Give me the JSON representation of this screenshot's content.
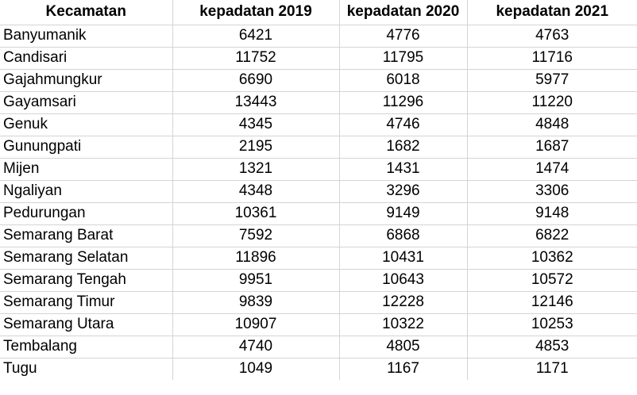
{
  "table": {
    "headers": [
      "Kecamatan",
      "kepadatan 2019",
      "kepadatan 2020",
      "kepadatan 2021"
    ],
    "rows": [
      [
        "Banyumanik",
        "6421",
        "4776",
        "4763"
      ],
      [
        "Candisari",
        "11752",
        "11795",
        "11716"
      ],
      [
        "Gajahmungkur",
        "6690",
        "6018",
        "5977"
      ],
      [
        "Gayamsari",
        "13443",
        "11296",
        "11220"
      ],
      [
        "Genuk",
        "4345",
        "4746",
        "4848"
      ],
      [
        "Gunungpati",
        "2195",
        "1682",
        "1687"
      ],
      [
        "Mijen",
        "1321",
        "1431",
        "1474"
      ],
      [
        "Ngaliyan",
        "4348",
        "3296",
        "3306"
      ],
      [
        "Pedurungan",
        "10361",
        "9149",
        "9148"
      ],
      [
        "Semarang Barat",
        "7592",
        "6868",
        "6822"
      ],
      [
        "Semarang Selatan",
        "11896",
        "10431",
        "10362"
      ],
      [
        "Semarang Tengah",
        "9951",
        "10643",
        "10572"
      ],
      [
        "Semarang Timur",
        "9839",
        "12228",
        "12146"
      ],
      [
        "Semarang Utara",
        "10907",
        "10322",
        "10253"
      ],
      [
        "Tembalang",
        "4740",
        "4805",
        "4853"
      ],
      [
        "Tugu",
        "1049",
        "1167",
        "1171"
      ]
    ]
  }
}
